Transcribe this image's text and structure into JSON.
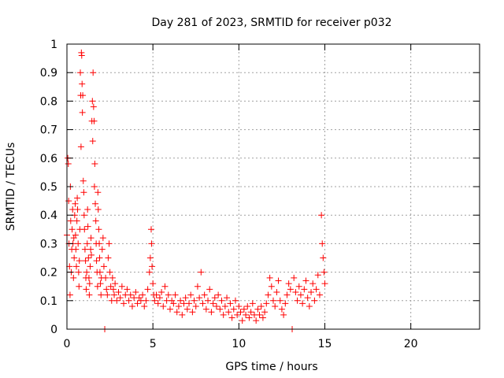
{
  "chart_data": {
    "type": "scatter",
    "title": "Day 281 of 2023, SRMTID for receiver p032",
    "xlabel": "GPS time / hours",
    "ylabel": "SRMTID / TECUs",
    "xlim": [
      0,
      24
    ],
    "ylim": [
      0,
      1
    ],
    "xticks": [
      0,
      5,
      10,
      15,
      20
    ],
    "xtick_labels": [
      "0",
      "5",
      "10",
      "15",
      "20"
    ],
    "yticks": [
      0,
      0.1,
      0.2,
      0.3,
      0.4,
      0.5,
      0.6,
      0.7,
      0.8,
      0.9,
      1
    ],
    "ytick_labels": [
      "0",
      "0.1",
      "0.2",
      "0.3",
      "0.4",
      "0.5",
      "0.6",
      "0.7",
      "0.8",
      "0.9",
      "1"
    ],
    "grid": true,
    "marker": "+",
    "color": "#ff0000",
    "series": [
      {
        "name": "SRMTID",
        "points": [
          [
            0.0,
            0.33
          ],
          [
            0.05,
            0.6
          ],
          [
            0.08,
            0.58
          ],
          [
            0.1,
            0.45
          ],
          [
            0.12,
            0.3
          ],
          [
            0.15,
            0.22
          ],
          [
            0.18,
            0.12
          ],
          [
            0.2,
            0.5
          ],
          [
            0.22,
            0.38
          ],
          [
            0.25,
            0.2
          ],
          [
            0.28,
            0.28
          ],
          [
            0.3,
            0.35
          ],
          [
            0.33,
            0.42
          ],
          [
            0.35,
            0.3
          ],
          [
            0.38,
            0.18
          ],
          [
            0.4,
            0.32
          ],
          [
            0.42,
            0.25
          ],
          [
            0.45,
            0.4
          ],
          [
            0.48,
            0.44
          ],
          [
            0.5,
            0.33
          ],
          [
            0.52,
            0.28
          ],
          [
            0.55,
            0.22
          ],
          [
            0.58,
            0.38
          ],
          [
            0.6,
            0.46
          ],
          [
            0.62,
            0.42
          ],
          [
            0.65,
            0.3
          ],
          [
            0.68,
            0.2
          ],
          [
            0.7,
            0.15
          ],
          [
            0.72,
            0.24
          ],
          [
            0.75,
            0.35
          ],
          [
            0.78,
            0.9
          ],
          [
            0.8,
            0.82
          ],
          [
            0.82,
            0.64
          ],
          [
            0.84,
            0.97
          ],
          [
            0.86,
            0.96
          ],
          [
            0.88,
            0.86
          ],
          [
            0.9,
            0.76
          ],
          [
            0.92,
            0.82
          ],
          [
            0.95,
            0.52
          ],
          [
            0.98,
            0.48
          ],
          [
            1.0,
            0.4
          ],
          [
            1.02,
            0.35
          ],
          [
            1.05,
            0.28
          ],
          [
            1.08,
            0.24
          ],
          [
            1.1,
            0.18
          ],
          [
            1.12,
            0.14
          ],
          [
            1.15,
            0.2
          ],
          [
            1.18,
            0.3
          ],
          [
            1.2,
            0.42
          ],
          [
            1.22,
            0.36
          ],
          [
            1.25,
            0.25
          ],
          [
            1.28,
            0.18
          ],
          [
            1.3,
            0.12
          ],
          [
            1.32,
            0.16
          ],
          [
            1.35,
            0.22
          ],
          [
            1.38,
            0.28
          ],
          [
            1.4,
            0.32
          ],
          [
            1.42,
            0.26
          ],
          [
            1.45,
            0.73
          ],
          [
            1.48,
            0.8
          ],
          [
            1.5,
            0.66
          ],
          [
            1.52,
            0.9
          ],
          [
            1.55,
            0.78
          ],
          [
            1.58,
            0.73
          ],
          [
            1.6,
            0.5
          ],
          [
            1.62,
            0.58
          ],
          [
            1.65,
            0.44
          ],
          [
            1.68,
            0.38
          ],
          [
            1.7,
            0.3
          ],
          [
            1.72,
            0.24
          ],
          [
            1.75,
            0.2
          ],
          [
            1.78,
            0.15
          ],
          [
            1.8,
            0.48
          ],
          [
            1.82,
            0.42
          ],
          [
            1.85,
            0.35
          ],
          [
            1.88,
            0.3
          ],
          [
            1.9,
            0.25
          ],
          [
            1.92,
            0.2
          ],
          [
            1.95,
            0.16
          ],
          [
            1.98,
            0.12
          ],
          [
            2.0,
            0.18
          ],
          [
            2.05,
            0.28
          ],
          [
            2.1,
            0.32
          ],
          [
            2.15,
            0.22
          ],
          [
            2.2,
            0.0
          ],
          [
            2.25,
            0.18
          ],
          [
            2.3,
            0.14
          ],
          [
            2.35,
            0.12
          ],
          [
            2.4,
            0.25
          ],
          [
            2.45,
            0.3
          ],
          [
            2.5,
            0.2
          ],
          [
            2.55,
            0.15
          ],
          [
            2.6,
            0.1
          ],
          [
            2.65,
            0.18
          ],
          [
            2.7,
            0.14
          ],
          [
            2.75,
            0.12
          ],
          [
            2.8,
            0.16
          ],
          [
            2.9,
            0.1
          ],
          [
            3.0,
            0.13
          ],
          [
            3.1,
            0.11
          ],
          [
            3.2,
            0.15
          ],
          [
            3.3,
            0.09
          ],
          [
            3.4,
            0.12
          ],
          [
            3.5,
            0.14
          ],
          [
            3.6,
            0.1
          ],
          [
            3.7,
            0.12
          ],
          [
            3.8,
            0.08
          ],
          [
            3.9,
            0.11
          ],
          [
            4.0,
            0.13
          ],
          [
            4.1,
            0.09
          ],
          [
            4.2,
            0.11
          ],
          [
            4.3,
            0.1
          ],
          [
            4.4,
            0.12
          ],
          [
            4.5,
            0.08
          ],
          [
            4.6,
            0.1
          ],
          [
            4.7,
            0.14
          ],
          [
            4.8,
            0.2
          ],
          [
            4.85,
            0.25
          ],
          [
            4.9,
            0.35
          ],
          [
            4.92,
            0.3
          ],
          [
            4.95,
            0.22
          ],
          [
            5.0,
            0.16
          ],
          [
            5.05,
            0.12
          ],
          [
            5.1,
            0.1
          ],
          [
            5.2,
            0.12
          ],
          [
            5.3,
            0.09
          ],
          [
            5.4,
            0.11
          ],
          [
            5.5,
            0.13
          ],
          [
            5.6,
            0.08
          ],
          [
            5.7,
            0.15
          ],
          [
            5.8,
            0.1
          ],
          [
            5.9,
            0.12
          ],
          [
            6.0,
            0.07
          ],
          [
            6.1,
            0.1
          ],
          [
            6.2,
            0.09
          ],
          [
            6.3,
            0.12
          ],
          [
            6.4,
            0.06
          ],
          [
            6.5,
            0.08
          ],
          [
            6.6,
            0.1
          ],
          [
            6.7,
            0.05
          ],
          [
            6.8,
            0.09
          ],
          [
            6.9,
            0.11
          ],
          [
            7.0,
            0.07
          ],
          [
            7.1,
            0.09
          ],
          [
            7.2,
            0.12
          ],
          [
            7.3,
            0.06
          ],
          [
            7.4,
            0.1
          ],
          [
            7.5,
            0.08
          ],
          [
            7.6,
            0.15
          ],
          [
            7.7,
            0.11
          ],
          [
            7.8,
            0.2
          ],
          [
            7.9,
            0.09
          ],
          [
            8.0,
            0.12
          ],
          [
            8.1,
            0.07
          ],
          [
            8.2,
            0.1
          ],
          [
            8.3,
            0.14
          ],
          [
            8.4,
            0.06
          ],
          [
            8.5,
            0.09
          ],
          [
            8.6,
            0.11
          ],
          [
            8.7,
            0.08
          ],
          [
            8.8,
            0.12
          ],
          [
            8.9,
            0.07
          ],
          [
            9.0,
            0.1
          ],
          [
            9.1,
            0.05
          ],
          [
            9.2,
            0.08
          ],
          [
            9.3,
            0.11
          ],
          [
            9.4,
            0.06
          ],
          [
            9.5,
            0.09
          ],
          [
            9.6,
            0.04
          ],
          [
            9.7,
            0.07
          ],
          [
            9.8,
            0.1
          ],
          [
            9.9,
            0.05
          ],
          [
            10.0,
            0.08
          ],
          [
            10.1,
            0.06
          ],
          [
            10.2,
            0.03
          ],
          [
            10.3,
            0.07
          ],
          [
            10.4,
            0.05
          ],
          [
            10.5,
            0.08
          ],
          [
            10.6,
            0.04
          ],
          [
            10.7,
            0.06
          ],
          [
            10.8,
            0.09
          ],
          [
            10.9,
            0.05
          ],
          [
            11.0,
            0.03
          ],
          [
            11.1,
            0.07
          ],
          [
            11.2,
            0.05
          ],
          [
            11.3,
            0.08
          ],
          [
            11.4,
            0.04
          ],
          [
            11.5,
            0.06
          ],
          [
            11.6,
            0.09
          ],
          [
            11.7,
            0.12
          ],
          [
            11.8,
            0.18
          ],
          [
            11.9,
            0.15
          ],
          [
            12.0,
            0.1
          ],
          [
            12.1,
            0.08
          ],
          [
            12.2,
            0.13
          ],
          [
            12.3,
            0.17
          ],
          [
            12.4,
            0.1
          ],
          [
            12.5,
            0.07
          ],
          [
            12.6,
            0.05
          ],
          [
            12.7,
            0.09
          ],
          [
            12.8,
            0.12
          ],
          [
            12.9,
            0.16
          ],
          [
            13.0,
            0.14
          ],
          [
            13.1,
            0.0
          ],
          [
            13.2,
            0.18
          ],
          [
            13.3,
            0.13
          ],
          [
            13.4,
            0.1
          ],
          [
            13.5,
            0.15
          ],
          [
            13.6,
            0.12
          ],
          [
            13.7,
            0.09
          ],
          [
            13.8,
            0.14
          ],
          [
            13.9,
            0.17
          ],
          [
            14.0,
            0.11
          ],
          [
            14.1,
            0.08
          ],
          [
            14.2,
            0.13
          ],
          [
            14.3,
            0.16
          ],
          [
            14.4,
            0.1
          ],
          [
            14.5,
            0.14
          ],
          [
            14.6,
            0.19
          ],
          [
            14.7,
            0.12
          ],
          [
            14.8,
            0.4
          ],
          [
            14.85,
            0.3
          ],
          [
            14.9,
            0.25
          ],
          [
            14.95,
            0.2
          ],
          [
            15.0,
            0.16
          ]
        ]
      }
    ]
  }
}
